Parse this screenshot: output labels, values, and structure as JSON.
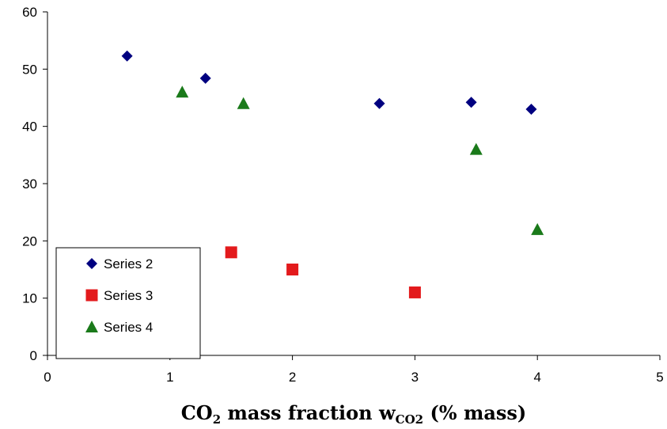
{
  "chart_data": {
    "type": "scatter",
    "title": "",
    "xlabel": {
      "p1": "CO",
      "p1_sub": "2",
      "p2": " mass fraction w",
      "p2_sub": "CO2",
      "p3": " (% mass)"
    },
    "ylabel": "",
    "xlim": [
      0,
      5
    ],
    "ylim": [
      0,
      60
    ],
    "x_ticks": [
      "0",
      "1",
      "2",
      "3",
      "4",
      "5"
    ],
    "y_ticks": [
      "0",
      "10",
      "20",
      "30",
      "40",
      "50",
      "60"
    ],
    "grid": false,
    "legend_position": "bottom-left",
    "series": [
      {
        "name": "Series 2",
        "marker": "diamond",
        "color": "#000080",
        "points": [
          [
            0.65,
            52.3
          ],
          [
            1.29,
            48.4
          ],
          [
            2.71,
            44.0
          ],
          [
            3.46,
            44.2
          ],
          [
            3.95,
            43.0
          ]
        ]
      },
      {
        "name": "Series 3",
        "marker": "square",
        "color": "#e31a1c",
        "points": [
          [
            1.5,
            18.0
          ],
          [
            2.0,
            15.0
          ],
          [
            3.0,
            11.0
          ]
        ]
      },
      {
        "name": "Series 4",
        "marker": "triangle",
        "color": "#1a7a1a",
        "points": [
          [
            1.1,
            46.0
          ],
          [
            1.6,
            44.0
          ],
          [
            3.5,
            36.0
          ],
          [
            4.0,
            22.0
          ]
        ]
      }
    ]
  }
}
